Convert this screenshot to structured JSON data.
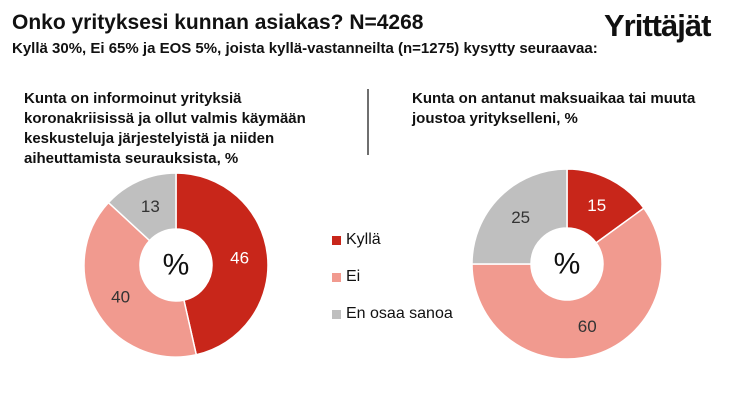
{
  "header": {
    "title": "Onko yrityksesi kunnan asiakas? N=4268",
    "subtitle": "Kyllä 30%, Ei 65% ja EOS 5%, joista kyllä-vastanneilta (n=1275) kysytty seuraavaa:",
    "logo_text": "Yrittäjät"
  },
  "colors": {
    "kylla": "#c8261a",
    "ei": "#f19a8f",
    "eos": "#bfbfbf",
    "divider": "#6f6f6f"
  },
  "chart_data": [
    {
      "type": "pie",
      "title": "Kunta on informoinut yrityksiä koronakriisissä ja ollut valmis käymään keskusteluja järjestelyistä ja niiden aiheuttamista seurauksista, %",
      "center_label": "%",
      "categories": [
        "Kyllä",
        "Ei",
        "En osaa sanoa"
      ],
      "values": [
        46,
        40,
        13
      ],
      "legend_position": "between charts"
    },
    {
      "type": "pie",
      "title": "Kunta on antanut maksuaikaa tai muuta joustoa yritykselleni, %",
      "center_label": "%",
      "categories": [
        "Kyllä",
        "Ei",
        "En osaa sanoa"
      ],
      "values": [
        15,
        60,
        25
      ],
      "legend_position": "between charts"
    }
  ],
  "legend": [
    {
      "label": "Kyllä",
      "color": "#c8261a"
    },
    {
      "label": "Ei",
      "color": "#f19a8f"
    },
    {
      "label": "En osaa sanoa",
      "color": "#bfbfbf"
    }
  ]
}
